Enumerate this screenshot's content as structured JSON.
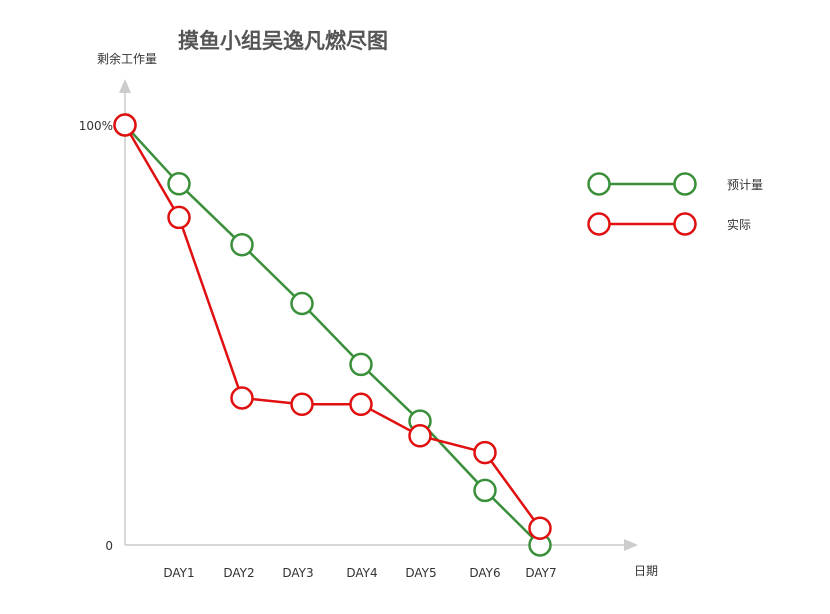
{
  "chart_data": {
    "type": "line",
    "title": "摸鱼小组吴逸凡燃尽图",
    "xlabel": "日期",
    "ylabel": "剩余工作量",
    "categories": [
      "",
      "DAY1",
      "DAY2",
      "DAY3",
      "DAY4",
      "DAY5",
      "DAY6",
      "DAY7"
    ],
    "y_ticks": [
      {
        "value": 0,
        "label": "0"
      },
      {
        "value": 100,
        "label": "100%"
      }
    ],
    "ylim": [
      0,
      100
    ],
    "grid": false,
    "legend_position": "right",
    "series": [
      {
        "name": "预计量",
        "color": "#3a8f3a",
        "values": [
          100,
          86,
          71.5,
          57.5,
          43,
          29.5,
          13,
          0
        ]
      },
      {
        "name": "实际",
        "color": "#e01010",
        "values": [
          100,
          78,
          35,
          33.5,
          33.5,
          26,
          22,
          4
        ]
      }
    ]
  }
}
